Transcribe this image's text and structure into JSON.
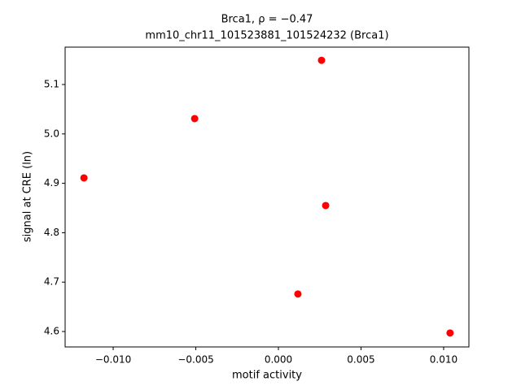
{
  "chart_data": {
    "type": "scatter",
    "title": [
      "Brca1, ρ = −0.47",
      "mm10_chr11_101523881_101524232 (Brca1)"
    ],
    "x_label": "motif activity",
    "y_label": "signal at CRE (ln)",
    "color": "#ff0000",
    "x": [
      -0.01177,
      -0.00507,
      0.00261,
      0.00286,
      0.00118,
      0.01039
    ],
    "values": [
      4.911,
      5.031,
      5.149,
      4.855,
      4.676,
      4.597
    ],
    "xlim": [
      -0.01291,
      0.01153
    ],
    "ylim": [
      4.5688,
      5.1757
    ],
    "xticks": [
      {
        "value": -0.01,
        "label": "−0.010"
      },
      {
        "value": -0.005,
        "label": "−0.005"
      },
      {
        "value": 0,
        "label": "0.000"
      },
      {
        "value": 0.005,
        "label": "0.005"
      },
      {
        "value": 0.01,
        "label": "0.010"
      }
    ],
    "yticks": [
      4.6,
      4.7,
      4.8,
      4.9,
      {
        "value": 5,
        "label": "5.0"
      },
      5.1
    ]
  }
}
